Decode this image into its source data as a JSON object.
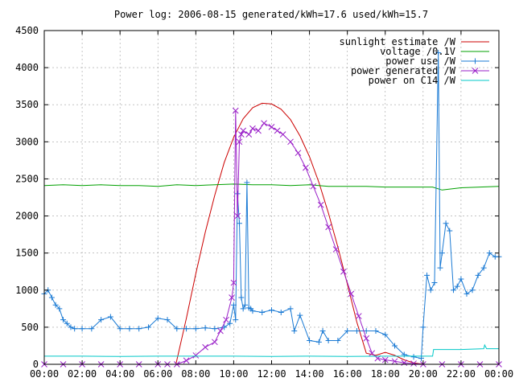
{
  "chart_data": {
    "type": "line",
    "title": "Power log: 2006-08-15 generated/kWh=17.6 used/kWh=15.7",
    "xlabel": "",
    "ylabel": "",
    "xlim": [
      0,
      24
    ],
    "ylim": [
      0,
      4500
    ],
    "x_tick_values": [
      0,
      2,
      4,
      6,
      8,
      10,
      12,
      14,
      16,
      18,
      20,
      22,
      24
    ],
    "x_ticks": [
      "00:00",
      "02:00",
      "04:00",
      "06:00",
      "08:00",
      "10:00",
      "12:00",
      "14:00",
      "16:00",
      "18:00",
      "20:00",
      "22:00",
      "00:00"
    ],
    "y_tick_values": [
      0,
      500,
      1000,
      1500,
      2000,
      2500,
      3000,
      3500,
      4000,
      4500
    ],
    "y_ticks": [
      "0",
      "500",
      "1000",
      "1500",
      "2000",
      "2500",
      "3000",
      "3500",
      "4000",
      "4500"
    ],
    "grid": true,
    "legend_position": "top-right",
    "series": [
      {
        "name": "sunlight estimate /W",
        "color": "#cc0000",
        "marker": "none",
        "x": [
          6.95,
          7.5,
          8.0,
          8.5,
          9.0,
          9.5,
          10.0,
          10.5,
          11.0,
          11.5,
          12.0,
          12.5,
          13.0,
          13.5,
          14.0,
          14.5,
          15.0,
          15.5,
          16.0,
          16.5,
          17.0,
          17.5,
          18.0,
          18.5,
          19.0,
          19.5,
          20.0
        ],
        "y": [
          0,
          620,
          1220,
          1780,
          2280,
          2720,
          3060,
          3310,
          3460,
          3520,
          3510,
          3440,
          3300,
          3080,
          2800,
          2450,
          2040,
          1580,
          1080,
          570,
          150,
          120,
          160,
          120,
          60,
          20,
          0
        ]
      },
      {
        "name": "voltage /0.1V",
        "color": "#00a000",
        "marker": "none",
        "x": [
          0,
          1,
          2,
          3,
          4,
          5,
          6,
          7,
          8,
          9,
          10,
          11,
          12,
          13,
          14,
          15,
          16,
          17,
          18,
          19,
          20,
          20.5,
          21,
          22,
          23,
          24
        ],
        "y": [
          2410,
          2420,
          2410,
          2420,
          2410,
          2410,
          2400,
          2420,
          2410,
          2420,
          2430,
          2420,
          2420,
          2410,
          2420,
          2400,
          2400,
          2400,
          2390,
          2390,
          2390,
          2390,
          2350,
          2380,
          2390,
          2400
        ]
      },
      {
        "name": "power use /W",
        "color": "#1a7ad4",
        "marker": "plus",
        "x": [
          0.0,
          0.2,
          0.4,
          0.6,
          0.8,
          1.0,
          1.2,
          1.4,
          1.6,
          2.0,
          2.5,
          3.0,
          3.5,
          4.0,
          4.5,
          5.0,
          5.5,
          6.0,
          6.5,
          7.0,
          7.5,
          8.0,
          8.5,
          9.0,
          9.5,
          9.8,
          10.0,
          10.1,
          10.2,
          10.3,
          10.4,
          10.5,
          10.6,
          10.7,
          10.8,
          10.9,
          11.0,
          11.5,
          12.0,
          12.5,
          13.0,
          13.2,
          13.5,
          14.0,
          14.5,
          14.7,
          15.0,
          15.5,
          16.0,
          16.5,
          17.0,
          17.5,
          18.0,
          18.5,
          19.0,
          19.5,
          19.9,
          20.0,
          20.2,
          20.4,
          20.6,
          20.8,
          20.9,
          21.0,
          21.2,
          21.4,
          21.6,
          21.8,
          22.0,
          22.3,
          22.6,
          22.9,
          23.2,
          23.5,
          23.8,
          24.0
        ],
        "y": [
          950,
          1000,
          900,
          800,
          750,
          600,
          550,
          500,
          480,
          480,
          480,
          600,
          640,
          480,
          480,
          480,
          500,
          620,
          600,
          480,
          480,
          480,
          490,
          480,
          500,
          550,
          800,
          600,
          2300,
          1900,
          900,
          750,
          800,
          2450,
          760,
          750,
          720,
          700,
          730,
          700,
          750,
          450,
          660,
          320,
          300,
          450,
          320,
          320,
          450,
          450,
          450,
          450,
          400,
          250,
          130,
          100,
          80,
          500,
          1200,
          1000,
          1100,
          4200,
          1300,
          1500,
          1900,
          1800,
          1000,
          1050,
          1150,
          950,
          1000,
          1200,
          1300,
          1500,
          1450,
          1450
        ]
      },
      {
        "name": "power generated /W",
        "color": "#9a20c8",
        "marker": "x",
        "x": [
          0,
          1,
          2,
          3,
          4,
          5,
          6,
          6.5,
          7.0,
          7.5,
          8.0,
          8.5,
          9.0,
          9.3,
          9.6,
          9.9,
          10.0,
          10.1,
          10.2,
          10.3,
          10.4,
          10.5,
          10.8,
          11.0,
          11.3,
          11.6,
          12.0,
          12.3,
          12.6,
          13.0,
          13.4,
          13.8,
          14.2,
          14.6,
          15.0,
          15.4,
          15.8,
          16.2,
          16.6,
          17.0,
          17.3,
          17.6,
          18.0,
          18.5,
          19.0,
          19.5,
          20.0,
          21.0,
          22.0,
          23.0,
          24.0
        ],
        "y": [
          0,
          0,
          0,
          0,
          0,
          0,
          0,
          0,
          0,
          50,
          120,
          230,
          300,
          450,
          600,
          900,
          1100,
          3420,
          2000,
          3000,
          3100,
          3150,
          3100,
          3180,
          3150,
          3250,
          3200,
          3150,
          3100,
          3000,
          2850,
          2650,
          2400,
          2150,
          1850,
          1550,
          1250,
          950,
          650,
          350,
          150,
          80,
          60,
          40,
          20,
          10,
          0,
          0,
          0,
          0,
          0
        ]
      },
      {
        "name": "power on C14 /W",
        "color": "#00c8c8",
        "marker": "none",
        "x": [
          0,
          2,
          4,
          6,
          8,
          10,
          12,
          14,
          16,
          18,
          20,
          20.5,
          20.55,
          22,
          23.2,
          23.25,
          23.35,
          24
        ],
        "y": [
          110,
          110,
          105,
          110,
          110,
          110,
          105,
          110,
          105,
          110,
          110,
          110,
          200,
          200,
          210,
          260,
          210,
          210
        ]
      }
    ]
  }
}
